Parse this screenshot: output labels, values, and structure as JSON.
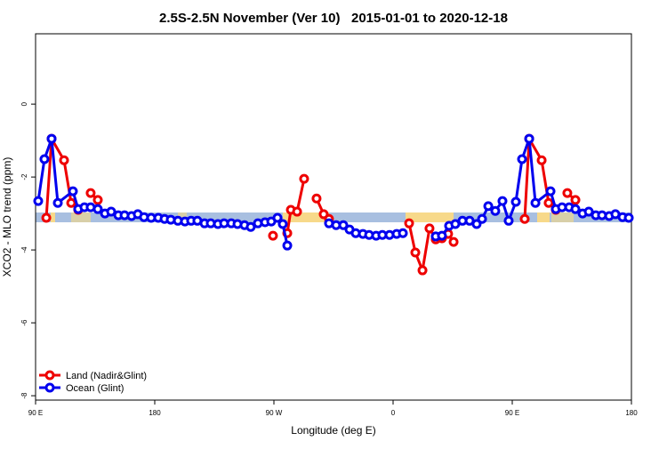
{
  "chart_data": {
    "type": "line",
    "title": "2.5S-2.5N November (Ver 10)   2015-01-01 to 2020-12-18",
    "xlabel": "Longitude (deg E)",
    "ylabel": "XCO2 - MLO trend (ppm)",
    "xlim": [
      90,
      540
    ],
    "ylim": [
      -8.12,
      1.93
    ],
    "xticks": [
      {
        "value": 90,
        "label": "90 E"
      },
      {
        "value": 180,
        "label": "180"
      },
      {
        "value": 270,
        "label": "90 W"
      },
      {
        "value": 360,
        "label": "0"
      },
      {
        "value": 450,
        "label": "90 E"
      },
      {
        "value": 540,
        "label": "180"
      }
    ],
    "yticks": [
      0,
      -2,
      -4,
      -6,
      -8
    ],
    "legend": "bottom-left",
    "series": [
      {
        "name": "Land (Nadir&Glint)",
        "color": "#ee0000",
        "x": [
          98.1,
          102.1,
          111.5,
          116.9,
          122.2,
          null,
          131.6,
          137.0,
          null,
          269.3,
          null,
          280.1,
          282.8,
          287.5,
          292.8,
          null,
          302.2,
          307.6,
          311.6,
          null,
          372.1,
          376.8,
          382.2,
          387.5,
          392.2,
          396.9,
          401.6,
          405.7,
          null,
          459.4,
          462.8,
          472.2,
          477.5,
          482.9,
          null,
          491.6,
          497.7
        ],
        "values": [
          -3.12,
          -0.95,
          -1.54,
          -2.71,
          -2.9,
          null,
          -2.44,
          -2.63,
          null,
          -3.61,
          null,
          -3.54,
          -2.9,
          -2.95,
          -2.05,
          null,
          -2.59,
          -3.02,
          -3.15,
          null,
          -3.27,
          -4.07,
          -4.56,
          -3.41,
          -3.71,
          -3.68,
          -3.56,
          -3.78,
          null,
          -3.15,
          -0.95,
          -1.54,
          -2.71,
          -2.9,
          null,
          -2.44,
          -2.63
        ]
      },
      {
        "name": "Ocean (Glint)",
        "color": "#0000ee",
        "x": [
          92.0,
          96.7,
          102.1,
          106.8,
          118.2,
          122.2,
          126.9,
          131.6,
          137.0,
          142.4,
          147.1,
          152.5,
          157.2,
          162.5,
          167.2,
          171.9,
          177.3,
          182.7,
          187.4,
          192.1,
          197.5,
          202.8,
          207.5,
          212.2,
          217.6,
          222.3,
          227.7,
          232.4,
          237.8,
          242.5,
          247.8,
          252.5,
          257.9,
          263.3,
          268.0,
          272.7,
          276.7,
          280.1,
          null,
          311.6,
          317.0,
          322.4,
          327.1,
          331.8,
          337.2,
          341.9,
          347.2,
          351.9,
          357.3,
          362.7,
          367.4,
          null,
          392.2,
          396.9,
          402.3,
          407.0,
          412.4,
          417.8,
          423.1,
          427.2,
          431.9,
          437.2,
          442.6,
          447.3,
          452.7,
          457.4,
          462.8,
          467.5,
          478.9,
          482.9,
          487.6,
          493.0,
          497.7,
          503.1,
          507.8,
          513.1,
          517.8,
          523.2,
          527.9,
          533.3,
          538.0
        ],
        "values": [
          -2.66,
          -1.51,
          -0.95,
          -2.71,
          -2.39,
          -2.88,
          -2.83,
          -2.83,
          -2.88,
          -3.0,
          -2.95,
          -3.05,
          -3.05,
          -3.07,
          -3.02,
          -3.1,
          -3.12,
          -3.12,
          -3.15,
          -3.17,
          -3.2,
          -3.22,
          -3.2,
          -3.2,
          -3.27,
          -3.27,
          -3.29,
          -3.27,
          -3.27,
          -3.29,
          -3.32,
          -3.37,
          -3.27,
          -3.24,
          -3.22,
          -3.12,
          -3.29,
          -3.88,
          null,
          -3.27,
          -3.32,
          -3.32,
          -3.44,
          -3.54,
          -3.56,
          -3.59,
          -3.61,
          -3.59,
          -3.59,
          -3.56,
          -3.54,
          null,
          -3.63,
          -3.61,
          -3.34,
          -3.29,
          -3.2,
          -3.2,
          -3.29,
          -3.15,
          -2.8,
          -2.93,
          -2.66,
          -3.2,
          -2.68,
          -1.51,
          -0.95,
          -2.71,
          -2.39,
          -2.88,
          -2.83,
          -2.83,
          -2.88,
          -3.0,
          -2.95,
          -3.05,
          -3.05,
          -3.07,
          -3.02,
          -3.1,
          -3.12
        ]
      }
    ]
  }
}
